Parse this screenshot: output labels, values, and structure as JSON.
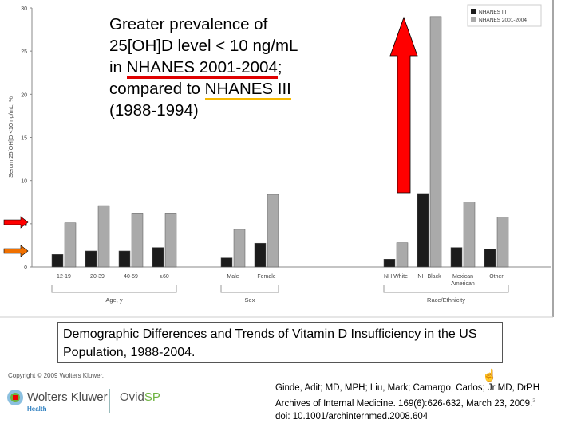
{
  "chart_data": {
    "type": "bar",
    "ylabel": "Serum 25[OH]D <10 ng/mL, %",
    "ylim": [
      0,
      30
    ],
    "yticks": [
      0,
      5,
      10,
      15,
      20,
      25,
      30
    ],
    "groups": [
      {
        "label": "Age, y",
        "categories": [
          "12-19",
          "20-39",
          "40-59",
          "≥60"
        ]
      },
      {
        "label": "Sex",
        "categories": [
          "Male",
          "Female"
        ]
      },
      {
        "label": "Race/Ethnicity",
        "categories": [
          "NH White",
          "NH Black",
          "Mexican American",
          "Other"
        ]
      }
    ],
    "series": [
      {
        "name": "NHANES III",
        "color": "#1c1c1c",
        "values": [
          1.45,
          1.85,
          1.85,
          2.25,
          1.05,
          2.75,
          0.9,
          8.5,
          2.25,
          2.1
        ]
      },
      {
        "name": "NHANES 2001-2004",
        "color": "#aaaaaa",
        "values": [
          5.1,
          7.1,
          6.15,
          6.15,
          4.35,
          8.4,
          2.8,
          29.0,
          7.5,
          5.75
        ]
      }
    ],
    "legend": "top-right",
    "grid": false
  },
  "annotation": {
    "line1": "Greater prevalence of",
    "line2": "25[OH]D level < 10 ng/mL",
    "line3_pre": "in ",
    "line3_u": "NHANES 2001-2004",
    "line3_post": ";",
    "line4_pre": "compared to ",
    "line4_u": "NHANES III",
    "line5": "(1988-1994)",
    "arrow_colors": [
      "#ff0000",
      "#f07000"
    ]
  },
  "caption": "Demographic Differences and Trends of Vitamin D Insufficiency in the US Population, 1988-2004.",
  "footer": {
    "copyright": "Copyright © 2009 Wolters Kluwer.",
    "brand": "Wolters Kluwer",
    "brand_sub": "Health",
    "ovid_a": "Ovid",
    "ovid_b": "SP",
    "citation_line1": "Ginde, Adit;  MD, MPH; Liu, Mark; Camargo, Carlos;  Jr MD, DrPH",
    "citation_line2": "Archives of Internal Medicine. 169(6):626-632, March 23, 2009.",
    "citation_sup": "3",
    "citation_line3": "doi: 10.1001/archinternmed.2008.604"
  }
}
